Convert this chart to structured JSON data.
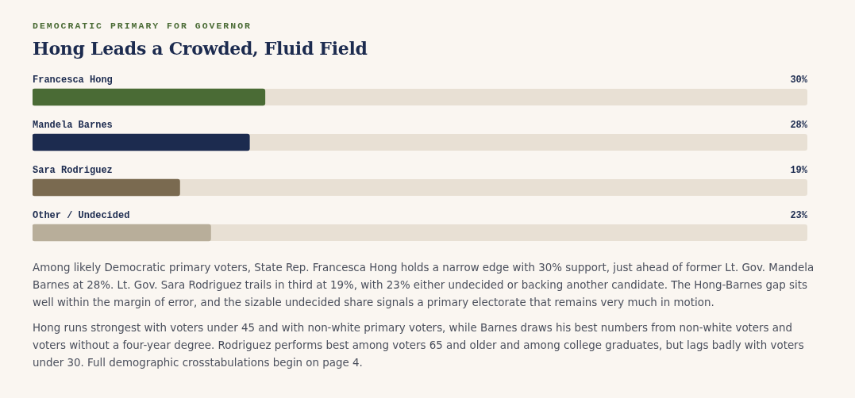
{
  "chart_data": {
    "type": "bar",
    "orientation": "horizontal",
    "subtitle": "DEMOCRATIC PRIMARY FOR GOVERNOR",
    "title": "Hong Leads a Crowded, Fluid Field",
    "categories": [
      "Francesca Hong",
      "Mandela Barnes",
      "Sara Rodriguez",
      "Other / Undecided"
    ],
    "values": [
      30,
      28,
      19,
      23
    ],
    "value_labels": [
      "30%",
      "28%",
      "19%",
      "23%"
    ],
    "colors": [
      "#4a6b35",
      "#1c2b4f",
      "#7a6a50",
      "#b8ae9a"
    ],
    "xlim": [
      0,
      100
    ],
    "annotations": [
      "Among likely Democratic primary voters, State Rep. Francesca Hong holds a narrow edge with 30% support, just ahead of former Lt. Gov. Mandela Barnes at 28%. Lt. Gov. Sara Rodriguez trails in third at 19%, with 23% either undecided or backing another candidate. The Hong-Barnes gap sits well within the margin of error, and the sizable undecided share signals a primary electorate that remains very much in motion.",
      "Hong runs strongest with voters under 45 and with non-white primary voters, while Barnes draws his best numbers from non-white voters and voters without a four-year degree. Rodriguez performs best among voters 65 and older and among college graduates, but lags badly with voters under 30. Full demographic crosstabulations begin on page 4."
    ]
  }
}
